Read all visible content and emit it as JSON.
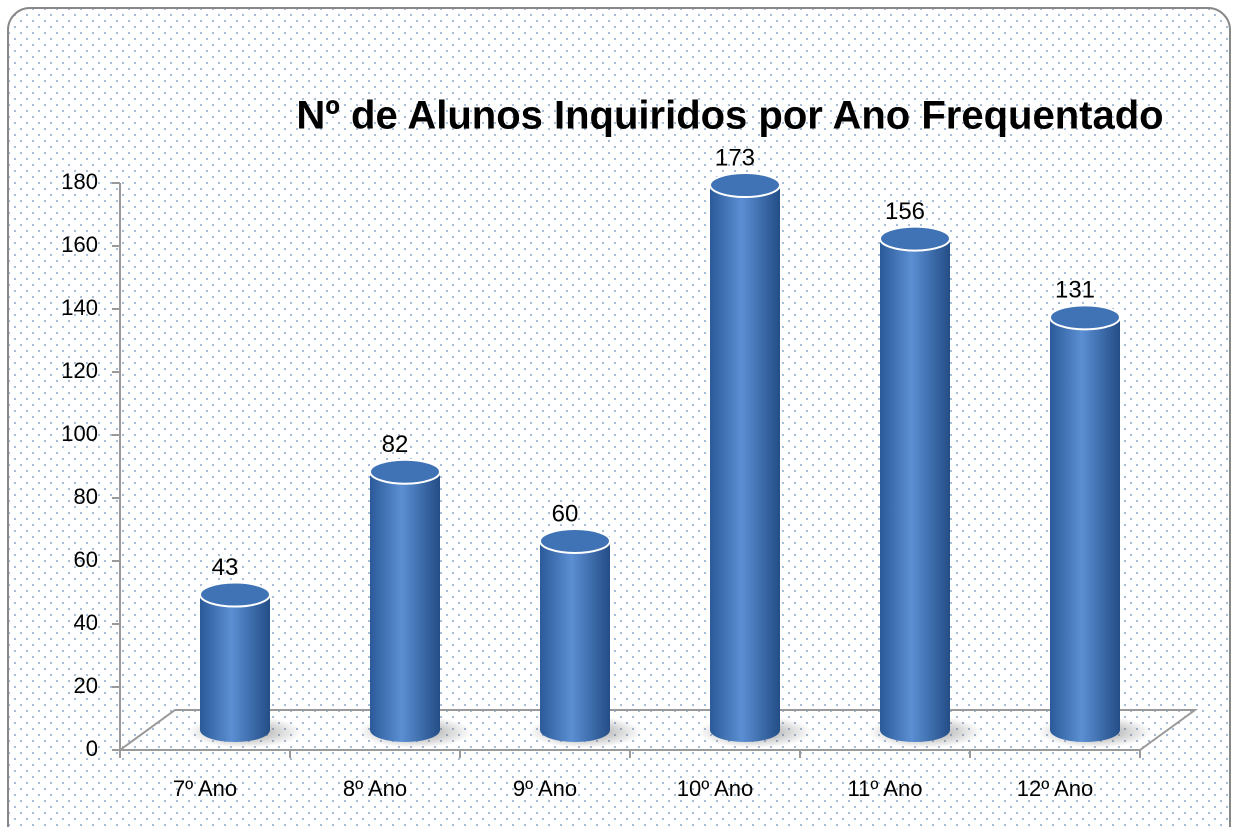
{
  "chart_data": {
    "type": "bar",
    "title": "Nº de Alunos Inquiridos por Ano Frequentado",
    "categories": [
      "7º Ano",
      "8º Ano",
      "9º Ano",
      "10º Ano",
      "11º Ano",
      "12º Ano"
    ],
    "values": [
      43,
      82,
      60,
      173,
      156,
      131
    ],
    "color": "#4a7ebb",
    "ylim": [
      0,
      180
    ],
    "yticks": [
      0,
      20,
      40,
      60,
      80,
      100,
      120,
      140,
      160,
      180
    ],
    "grid": false
  }
}
